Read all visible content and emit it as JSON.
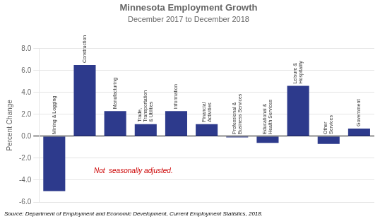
{
  "chart_data": {
    "type": "bar",
    "title": "Minnesota Employment Growth",
    "subtitle": "December 2017 to December 2018",
    "categories": [
      "Mining & Logging",
      "Construction",
      "Manufacturing",
      "Trade,\nTransportation\n& Utilities",
      "Information",
      "Financial\nActivities",
      "Professional &\nBusiness Services",
      "Educational &\nHealth Services",
      "Leisure &\nHospitality",
      "Other\nServices",
      "Government"
    ],
    "values": [
      -5.0,
      6.5,
      2.3,
      1.1,
      2.3,
      1.1,
      -0.1,
      -0.6,
      4.6,
      -0.7,
      0.7
    ],
    "color": "#2d3a8c",
    "ylabel": "Percent Change",
    "ylim": [
      -6.0,
      8.0
    ],
    "yticks": [
      {
        "value": -6.0,
        "label": "-6.0"
      },
      {
        "value": -4.0,
        "label": "-4.0"
      },
      {
        "value": -2.0,
        "label": "-2.0"
      },
      {
        "value": 0.0,
        "label": "0.0"
      },
      {
        "value": 2.0,
        "label": "2.0"
      },
      {
        "value": 4.0,
        "label": "4.0"
      },
      {
        "value": 6.0,
        "label": "6.0"
      },
      {
        "value": 8.0,
        "label": "8.0"
      }
    ],
    "grid": true,
    "tick_labels": "y",
    "annotations": [
      {
        "text": "Not  seasonally adjusted.",
        "color": "#cc0000"
      }
    ],
    "source": "Source: Department of Employment and Economic Development, Current Employment Statistics, 2018."
  }
}
